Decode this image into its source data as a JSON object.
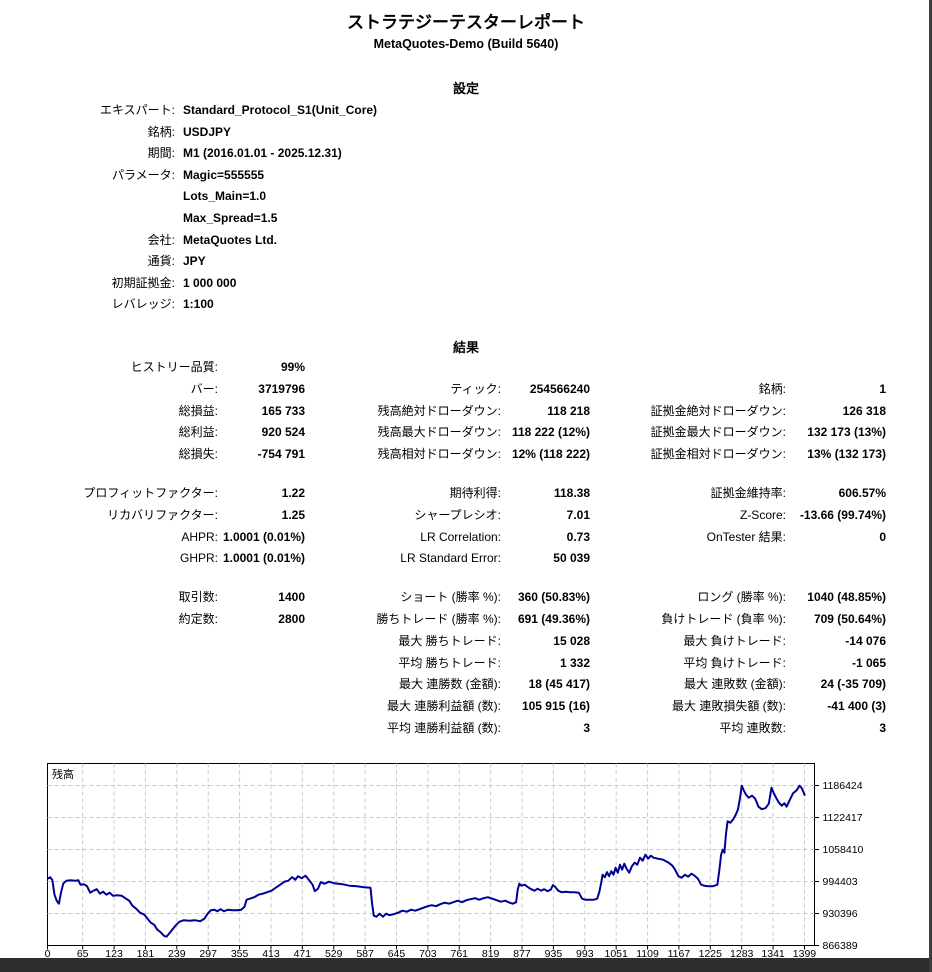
{
  "report": {
    "title": "ストラテジーテスターレポート",
    "subtitle": "MetaQuotes-Demo (Build 5640)"
  },
  "settings": {
    "heading": "設定",
    "rows": [
      {
        "label": "エキスパート:",
        "value": "Standard_Protocol_S1(Unit_Core)"
      },
      {
        "label": "銘柄:",
        "value": "USDJPY"
      },
      {
        "label": "期間:",
        "value": "M1 (2016.01.01 - 2025.12.31)"
      },
      {
        "label": "パラメータ:",
        "value": "Magic=555555"
      },
      {
        "label": "",
        "value": "Lots_Main=1.0"
      },
      {
        "label": "",
        "value": "Max_Spread=1.5"
      },
      {
        "label": "会社:",
        "value": "MetaQuotes Ltd."
      },
      {
        "label": "通貨:",
        "value": "JPY"
      },
      {
        "label": "初期証拠金:",
        "value": "1 000 000"
      },
      {
        "label": "レバレッジ:",
        "value": "1:100"
      }
    ]
  },
  "results": {
    "heading": "結果",
    "blocks": [
      [
        [
          "ヒストリー品質:",
          "99%",
          "",
          "",
          "",
          ""
        ],
        [
          "バー:",
          "3719796",
          "ティック:",
          "254566240",
          "銘柄:",
          "1"
        ],
        [
          "総損益:",
          "165 733",
          "残高絶対ドローダウン:",
          "118 218",
          "証拠金絶対ドローダウン:",
          "126 318"
        ],
        [
          "総利益:",
          "920 524",
          "残高最大ドローダウン:",
          "118 222 (12%)",
          "証拠金最大ドローダウン:",
          "132 173 (13%)"
        ],
        [
          "総損失:",
          "-754 791",
          "残高相対ドローダウン:",
          "12% (118 222)",
          "証拠金相対ドローダウン:",
          "13% (132 173)"
        ]
      ],
      [
        [
          "プロフィットファクター:",
          "1.22",
          "期待利得:",
          "118.38",
          "証拠金維持率:",
          "606.57%"
        ],
        [
          "リカバリファクター:",
          "1.25",
          "シャープレシオ:",
          "7.01",
          "Z-Score:",
          "-13.66 (99.74%)"
        ],
        [
          "AHPR:",
          "1.0001 (0.01%)",
          "LR Correlation:",
          "0.73",
          "OnTester 結果:",
          "0"
        ],
        [
          "GHPR:",
          "1.0001 (0.01%)",
          "LR Standard Error:",
          "50 039",
          "",
          ""
        ]
      ],
      [
        [
          "取引数:",
          "1400",
          "ショート (勝率 %):",
          "360 (50.83%)",
          "ロング (勝率 %):",
          "1040 (48.85%)"
        ],
        [
          "約定数:",
          "2800",
          "勝ちトレード (勝率 %):",
          "691 (49.36%)",
          "負けトレード (負率 %):",
          "709 (50.64%)"
        ],
        [
          "",
          "",
          "最大 勝ちトレード:",
          "15 028",
          "最大 負けトレード:",
          "-14 076"
        ],
        [
          "",
          "",
          "平均 勝ちトレード:",
          "1 332",
          "平均 負けトレード:",
          "-1 065"
        ],
        [
          "",
          "",
          "最大 連勝数 (金額):",
          "18 (45 417)",
          "最大 連敗数 (金額):",
          "24 (-35 709)"
        ],
        [
          "",
          "",
          "最大 連勝利益額 (数):",
          "105 915 (16)",
          "最大 連敗損失額 (数):",
          "-41 400 (3)"
        ],
        [
          "",
          "",
          "平均 連勝利益額 (数):",
          "3",
          "平均 連敗数:",
          "3"
        ]
      ]
    ]
  },
  "chart_data": {
    "type": "line",
    "title": "残高",
    "xlabel": "",
    "ylabel": "",
    "legend_position": "none",
    "grid": "dashed",
    "x_ticks": [
      0,
      65,
      123,
      181,
      239,
      297,
      355,
      413,
      471,
      529,
      587,
      645,
      703,
      761,
      819,
      877,
      935,
      993,
      1051,
      1109,
      1167,
      1225,
      1283,
      1341,
      1399
    ],
    "y_ticks": [
      866389,
      930396,
      994403,
      1058410,
      1122417,
      1186424
    ],
    "x_range": [
      0,
      1412
    ],
    "y_range": [
      866389,
      1230389
    ],
    "series": [
      {
        "name": "残高",
        "color": "#000096",
        "points": [
          [
            0,
            1000000
          ],
          [
            5,
            1003000
          ],
          [
            9,
            997000
          ],
          [
            13,
            968000
          ],
          [
            17,
            956000
          ],
          [
            21,
            950000
          ],
          [
            25,
            972000
          ],
          [
            29,
            990000
          ],
          [
            35,
            996000
          ],
          [
            43,
            997000
          ],
          [
            51,
            996000
          ],
          [
            57,
            997000
          ],
          [
            61,
            988000
          ],
          [
            67,
            989000
          ],
          [
            73,
            985000
          ],
          [
            79,
            972000
          ],
          [
            85,
            976000
          ],
          [
            91,
            979000
          ],
          [
            97,
            970000
          ],
          [
            103,
            974000
          ],
          [
            109,
            968000
          ],
          [
            115,
            972000
          ],
          [
            121,
            966000
          ],
          [
            129,
            967000
          ],
          [
            137,
            966000
          ],
          [
            145,
            960000
          ],
          [
            151,
            956000
          ],
          [
            157,
            946000
          ],
          [
            164,
            940000
          ],
          [
            171,
            932000
          ],
          [
            179,
            928000
          ],
          [
            185,
            920000
          ],
          [
            191,
            912000
          ],
          [
            197,
            908000
          ],
          [
            203,
            898000
          ],
          [
            209,
            893000
          ],
          [
            215,
            886000
          ],
          [
            220,
            884000
          ],
          [
            226,
            892000
          ],
          [
            232,
            900000
          ],
          [
            238,
            908000
          ],
          [
            244,
            914000
          ],
          [
            252,
            917000
          ],
          [
            262,
            916000
          ],
          [
            272,
            917000
          ],
          [
            282,
            915000
          ],
          [
            290,
            920000
          ],
          [
            296,
            930000
          ],
          [
            302,
            937000
          ],
          [
            308,
            938000
          ],
          [
            314,
            935000
          ],
          [
            320,
            939000
          ],
          [
            326,
            935000
          ],
          [
            334,
            938000
          ],
          [
            342,
            937000
          ],
          [
            350,
            937000
          ],
          [
            358,
            938000
          ],
          [
            364,
            944000
          ],
          [
            368,
            958000
          ],
          [
            374,
            960000
          ],
          [
            382,
            963000
          ],
          [
            390,
            968000
          ],
          [
            398,
            970000
          ],
          [
            406,
            973000
          ],
          [
            414,
            976000
          ],
          [
            422,
            982000
          ],
          [
            430,
            988000
          ],
          [
            438,
            994000
          ],
          [
            445,
            996000
          ],
          [
            452,
            1003000
          ],
          [
            458,
            998000
          ],
          [
            463,
            1005000
          ],
          [
            470,
            1001000
          ],
          [
            477,
            1006000
          ],
          [
            483,
            998000
          ],
          [
            490,
            988000
          ],
          [
            494,
            975000
          ],
          [
            500,
            980000
          ],
          [
            505,
            993000
          ],
          [
            512,
            990000
          ],
          [
            520,
            994000
          ],
          [
            530,
            991000
          ],
          [
            545,
            989000
          ],
          [
            558,
            986000
          ],
          [
            572,
            985000
          ],
          [
            585,
            983000
          ],
          [
            597,
            982000
          ],
          [
            600,
            950000
          ],
          [
            603,
            926000
          ],
          [
            608,
            924000
          ],
          [
            614,
            930000
          ],
          [
            620,
            924000
          ],
          [
            626,
            930000
          ],
          [
            632,
            927000
          ],
          [
            640,
            929000
          ],
          [
            648,
            932000
          ],
          [
            656,
            936000
          ],
          [
            664,
            934000
          ],
          [
            672,
            938000
          ],
          [
            680,
            936000
          ],
          [
            690,
            940000
          ],
          [
            700,
            944000
          ],
          [
            710,
            947000
          ],
          [
            718,
            945000
          ],
          [
            726,
            949000
          ],
          [
            734,
            952000
          ],
          [
            742,
            950000
          ],
          [
            750,
            953000
          ],
          [
            758,
            956000
          ],
          [
            766,
            953000
          ],
          [
            774,
            957000
          ],
          [
            782,
            959000
          ],
          [
            790,
            961000
          ],
          [
            798,
            958000
          ],
          [
            806,
            961000
          ],
          [
            814,
            963000
          ],
          [
            822,
            960000
          ],
          [
            830,
            957000
          ],
          [
            838,
            954000
          ],
          [
            846,
            956000
          ],
          [
            854,
            952000
          ],
          [
            860,
            950000
          ],
          [
            866,
            953000
          ],
          [
            869,
            978000
          ],
          [
            872,
            990000
          ],
          [
            876,
            986000
          ],
          [
            882,
            988000
          ],
          [
            888,
            983000
          ],
          [
            894,
            979000
          ],
          [
            900,
            976000
          ],
          [
            906,
            980000
          ],
          [
            912,
            976000
          ],
          [
            918,
            979000
          ],
          [
            924,
            975000
          ],
          [
            930,
            978000
          ],
          [
            934,
            987000
          ],
          [
            938,
            984000
          ],
          [
            944,
            976000
          ],
          [
            950,
            973000
          ],
          [
            958,
            974000
          ],
          [
            966,
            973000
          ],
          [
            974,
            973000
          ],
          [
            982,
            972000
          ],
          [
            988,
            960000
          ],
          [
            994,
            958000
          ],
          [
            1002,
            958000
          ],
          [
            1010,
            958000
          ],
          [
            1016,
            960000
          ],
          [
            1020,
            974000
          ],
          [
            1023,
            990000
          ],
          [
            1026,
            1008000
          ],
          [
            1030,
            1003000
          ],
          [
            1034,
            1013000
          ],
          [
            1038,
            1005000
          ],
          [
            1042,
            1015000
          ],
          [
            1046,
            1008000
          ],
          [
            1050,
            1022000
          ],
          [
            1054,
            1012000
          ],
          [
            1058,
            1028000
          ],
          [
            1062,
            1018000
          ],
          [
            1066,
            1030000
          ],
          [
            1070,
            1020000
          ],
          [
            1075,
            1012000
          ],
          [
            1080,
            1025000
          ],
          [
            1085,
            1032000
          ],
          [
            1090,
            1028000
          ],
          [
            1095,
            1042000
          ],
          [
            1100,
            1036000
          ],
          [
            1105,
            1048000
          ],
          [
            1110,
            1040000
          ],
          [
            1115,
            1046000
          ],
          [
            1120,
            1042000
          ],
          [
            1128,
            1040000
          ],
          [
            1138,
            1038000
          ],
          [
            1148,
            1032000
          ],
          [
            1155,
            1026000
          ],
          [
            1160,
            1018000
          ],
          [
            1166,
            1005000
          ],
          [
            1172,
            1002000
          ],
          [
            1178,
            1008000
          ],
          [
            1184,
            1004000
          ],
          [
            1190,
            1010000
          ],
          [
            1196,
            1006000
          ],
          [
            1202,
            1000000
          ],
          [
            1208,
            988000
          ],
          [
            1214,
            986000
          ],
          [
            1222,
            985000
          ],
          [
            1230,
            985000
          ],
          [
            1238,
            988000
          ],
          [
            1242,
            1020000
          ],
          [
            1245,
            1048000
          ],
          [
            1248,
            1058000
          ],
          [
            1251,
            1052000
          ],
          [
            1254,
            1090000
          ],
          [
            1257,
            1115000
          ],
          [
            1262,
            1112000
          ],
          [
            1267,
            1118000
          ],
          [
            1272,
            1128000
          ],
          [
            1276,
            1138000
          ],
          [
            1280,
            1162000
          ],
          [
            1283,
            1186000
          ],
          [
            1287,
            1176000
          ],
          [
            1291,
            1168000
          ],
          [
            1296,
            1162000
          ],
          [
            1302,
            1166000
          ],
          [
            1308,
            1160000
          ],
          [
            1314,
            1144000
          ],
          [
            1320,
            1139000
          ],
          [
            1327,
            1141000
          ],
          [
            1333,
            1150000
          ],
          [
            1338,
            1182000
          ],
          [
            1342,
            1172000
          ],
          [
            1347,
            1161000
          ],
          [
            1352,
            1152000
          ],
          [
            1357,
            1146000
          ],
          [
            1362,
            1151000
          ],
          [
            1366,
            1144000
          ],
          [
            1372,
            1158000
          ],
          [
            1378,
            1171000
          ],
          [
            1384,
            1176000
          ],
          [
            1390,
            1186000
          ],
          [
            1394,
            1181000
          ],
          [
            1400,
            1166000
          ]
        ]
      }
    ]
  },
  "colors": {
    "curve": "#000096",
    "grid": "#c9c9c9",
    "plot_border": "#000000",
    "bottom_bar": "#2e2e2e"
  }
}
